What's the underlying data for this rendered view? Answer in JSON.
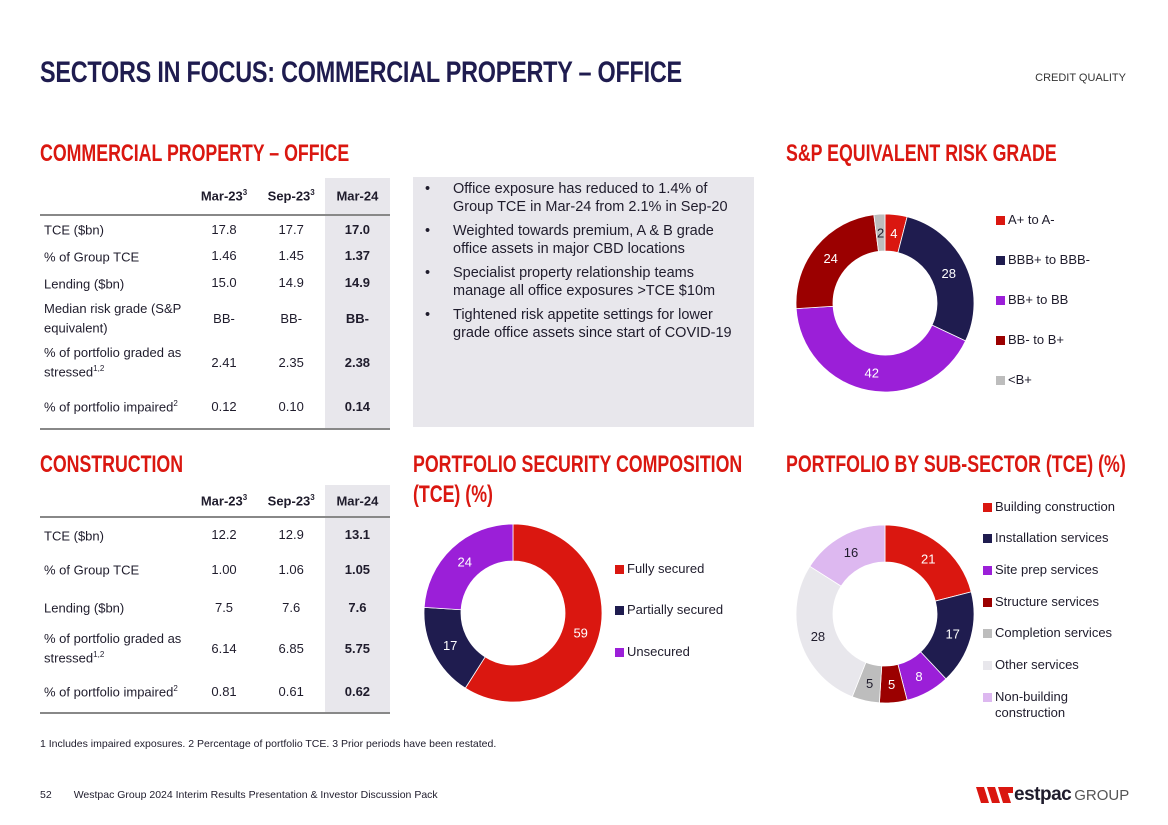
{
  "title": "SECTORS IN FOCUS: COMMERCIAL PROPERTY – OFFICE",
  "section_tag": "CREDIT QUALITY",
  "office": {
    "heading": "COMMERCIAL PROPERTY – OFFICE",
    "columns": [
      {
        "label": "Mar-23",
        "sup": "3"
      },
      {
        "label": "Sep-23",
        "sup": "3"
      },
      {
        "label": "Mar-24",
        "sup": ""
      }
    ],
    "rows": [
      {
        "label": "TCE ($bn)",
        "sup": "",
        "values": [
          "17.8",
          "17.7",
          "17.0"
        ]
      },
      {
        "label": "% of Group TCE",
        "sup": "",
        "values": [
          "1.46",
          "1.45",
          "1.37"
        ]
      },
      {
        "label": "Lending ($bn)",
        "sup": "",
        "values": [
          "15.0",
          "14.9",
          "14.9"
        ]
      },
      {
        "label": "Median risk grade (S&P equivalent)",
        "sup": "",
        "values": [
          "BB-",
          "BB-",
          "BB-"
        ]
      },
      {
        "label": "% of portfolio graded as stressed",
        "sup": "1,2",
        "values": [
          "2.41",
          "2.35",
          "2.38"
        ]
      },
      {
        "label": "% of portfolio impaired",
        "sup": "2",
        "values": [
          "0.12",
          "0.10",
          "0.14"
        ]
      }
    ]
  },
  "bullets": [
    "Office exposure has reduced to 1.4% of Group TCE in Mar-24 from 2.1% in Sep-20",
    "Weighted towards premium, A & B grade office assets in major CBD locations",
    "Specialist property relationship teams manage all office exposures >TCE $10m",
    "Tightened risk appetite settings for lower grade office assets since start of COVID-19"
  ],
  "construction": {
    "heading": "CONSTRUCTION",
    "columns": [
      {
        "label": "Mar-23",
        "sup": "3"
      },
      {
        "label": "Sep-23",
        "sup": "3"
      },
      {
        "label": "Mar-24",
        "sup": ""
      }
    ],
    "rows": [
      {
        "label": "TCE ($bn)",
        "sup": "",
        "values": [
          "12.2",
          "12.9",
          "13.1"
        ]
      },
      {
        "label": "% of Group TCE",
        "sup": "",
        "values": [
          "1.00",
          "1.06",
          "1.05"
        ]
      },
      {
        "label": "Lending ($bn)",
        "sup": "",
        "values": [
          "7.5",
          "7.6",
          "7.6"
        ]
      },
      {
        "label": "% of portfolio graded as stressed",
        "sup": "1,2",
        "values": [
          "6.14",
          "6.85",
          "5.75"
        ]
      },
      {
        "label": "% of portfolio impaired",
        "sup": "2",
        "values": [
          "0.81",
          "0.61",
          "0.62"
        ]
      }
    ]
  },
  "chart_data": [
    {
      "type": "pie",
      "title": "S&P EQUIVALENT RISK GRADE",
      "donut": true,
      "legend": "right",
      "categories": [
        "A+ to A-",
        "BBB+ to BBB-",
        "BB+ to BB",
        "BB- to B+",
        "<B+"
      ],
      "values": [
        4,
        28,
        42,
        24,
        2
      ],
      "colors": [
        "#da1710",
        "#1f1c4f",
        "#9b1fd8",
        "#9b0000",
        "#bdbdbd"
      ],
      "label_colors": [
        "#ffffff",
        "#ffffff",
        "#ffffff",
        "#ffffff",
        "#1f1c2c"
      ]
    },
    {
      "type": "pie",
      "title": "PORTFOLIO SECURITY COMPOSITION (TCE) (%)",
      "donut": true,
      "legend": "right",
      "categories": [
        "Fully secured",
        "Partially secured",
        "Unsecured"
      ],
      "values": [
        59,
        17,
        24
      ],
      "colors": [
        "#da1710",
        "#1f1c4f",
        "#9b1fd8"
      ],
      "label_colors": [
        "#ffffff",
        "#ffffff",
        "#ffffff"
      ]
    },
    {
      "type": "pie",
      "title": "PORTFOLIO BY SUB-SECTOR (TCE) (%)",
      "donut": true,
      "legend": "right",
      "categories": [
        "Building construction",
        "Installation services",
        "Site prep services",
        "Structure services",
        "Completion services",
        "Other services",
        "Non-building construction"
      ],
      "values": [
        21,
        17,
        8,
        5,
        5,
        28,
        16
      ],
      "colors": [
        "#da1710",
        "#1f1c4f",
        "#9b1fd8",
        "#9b0000",
        "#bdbdbd",
        "#e8e7ec",
        "#ddb8f0"
      ],
      "label_colors": [
        "#ffffff",
        "#ffffff",
        "#ffffff",
        "#ffffff",
        "#1f1c2c",
        "#1f1c2c",
        "#1f1c2c"
      ]
    }
  ],
  "footnote": "1 Includes impaired exposures. 2 Percentage of portfolio TCE. 3 Prior periods have been restated.",
  "footer": {
    "page": "52",
    "text": "Westpac Group 2024 Interim Results Presentation & Investor Discussion Pack",
    "logo_text": "Westpac GROUP"
  }
}
